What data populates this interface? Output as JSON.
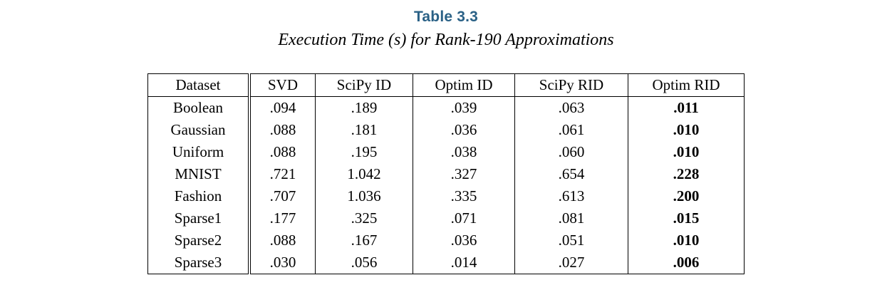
{
  "title": {
    "label": "Table 3.3",
    "color": "#2a6186"
  },
  "caption": "Execution Time (s) for Rank-190 Approximations",
  "table": {
    "columns": [
      "Dataset",
      "SVD",
      "SciPy ID",
      "Optim ID",
      "SciPy RID",
      "Optim RID"
    ],
    "bold_column": "Optim RID",
    "rows": [
      {
        "dataset": "Boolean",
        "values": [
          ".094",
          ".189",
          ".039",
          ".063",
          ".011"
        ]
      },
      {
        "dataset": "Gaussian",
        "values": [
          ".088",
          ".181",
          ".036",
          ".061",
          ".010"
        ]
      },
      {
        "dataset": "Uniform",
        "values": [
          ".088",
          ".195",
          ".038",
          ".060",
          ".010"
        ]
      },
      {
        "dataset": "MNIST",
        "values": [
          ".721",
          "1.042",
          ".327",
          ".654",
          ".228"
        ]
      },
      {
        "dataset": "Fashion",
        "values": [
          ".707",
          "1.036",
          ".335",
          ".613",
          ".200"
        ]
      },
      {
        "dataset": "Sparse1",
        "values": [
          ".177",
          ".325",
          ".071",
          ".081",
          ".015"
        ]
      },
      {
        "dataset": "Sparse2",
        "values": [
          ".088",
          ".167",
          ".036",
          ".051",
          ".010"
        ]
      },
      {
        "dataset": "Sparse3",
        "values": [
          ".030",
          ".056",
          ".014",
          ".027",
          ".006"
        ]
      }
    ]
  }
}
